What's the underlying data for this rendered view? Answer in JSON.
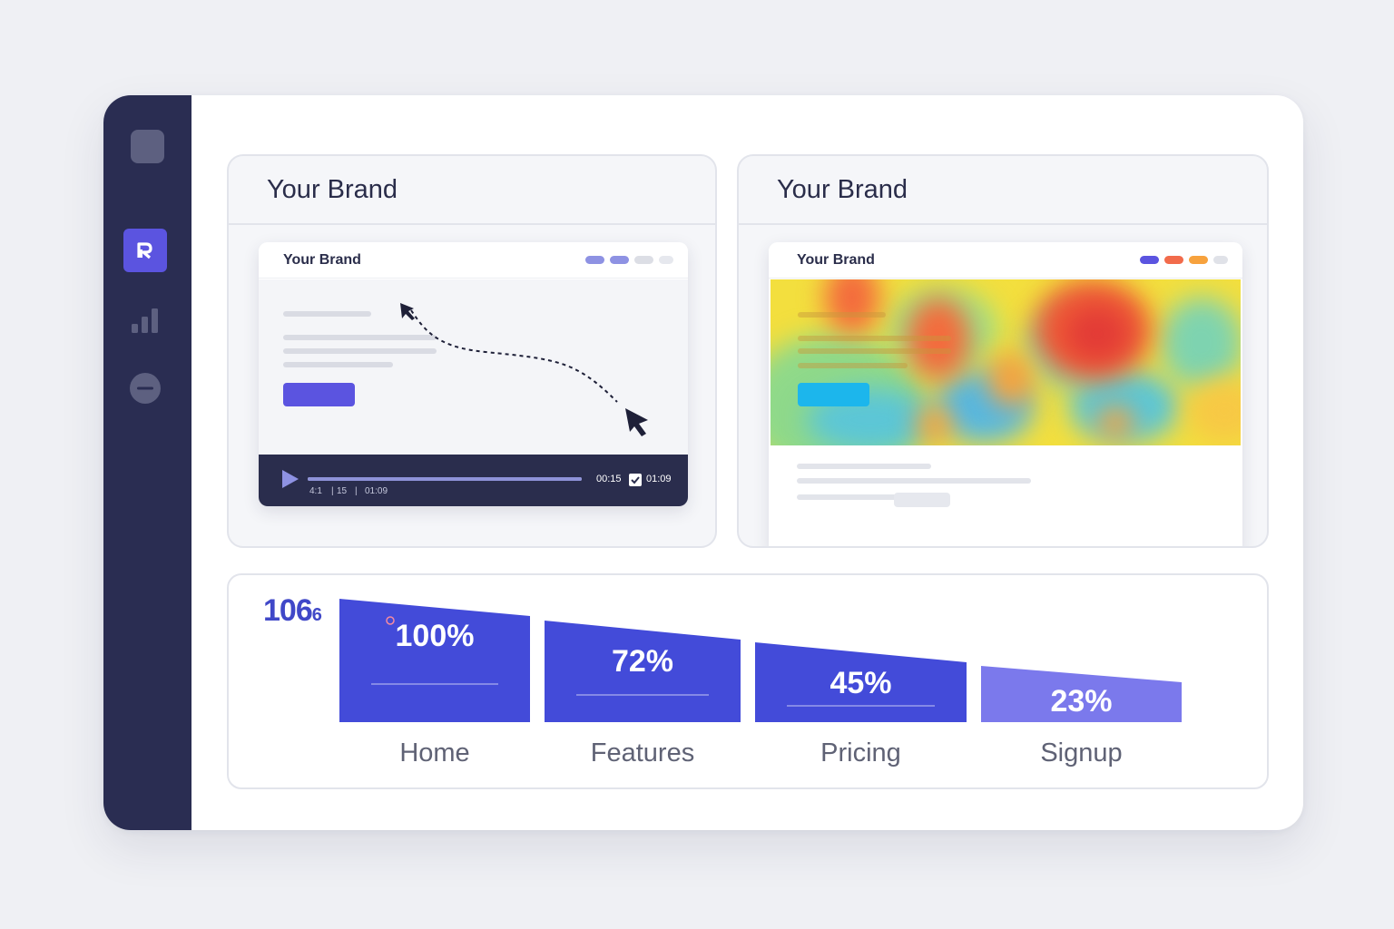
{
  "sidebar": {
    "items": [
      {
        "name": "brand-logo",
        "icon": "r-logo-icon",
        "active": true
      },
      {
        "name": "analytics",
        "icon": "bar-chart-icon",
        "active": false
      },
      {
        "name": "remove",
        "icon": "minus-circle-icon",
        "active": false
      }
    ]
  },
  "recording_card": {
    "title": "Your Brand",
    "mock_title": "Your Brand",
    "player": {
      "small_left": "4:1",
      "small_mid": "15",
      "small_right": "01:09",
      "current_time": "00:15",
      "total_time": "01:09",
      "progress": 1.0
    }
  },
  "heatmap_card": {
    "title": "Your Brand",
    "mock_title": "Your Brand"
  },
  "funnel": {
    "header_number": "106",
    "header_suffix": "6",
    "stages": [
      {
        "label": "Home",
        "value": "100%",
        "pct": 100
      },
      {
        "label": "Features",
        "value": "72%",
        "pct": 72
      },
      {
        "label": "Pricing",
        "value": "45%",
        "pct": 45
      },
      {
        "label": "Signup",
        "value": "23%",
        "pct": 23
      }
    ]
  },
  "colors": {
    "sidebar": "#2a2d52",
    "accent": "#5b54e0",
    "funnel_bar": "#434bd9",
    "funnel_bar_last": "#7b79ec"
  }
}
